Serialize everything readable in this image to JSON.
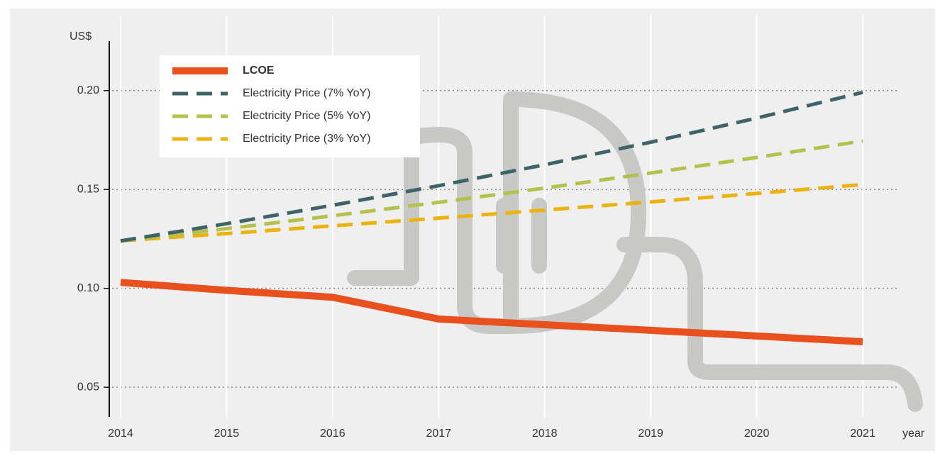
{
  "chart_data": {
    "type": "line",
    "y_label": "US$",
    "x_label": "year",
    "x": [
      2014,
      2015,
      2016,
      2017,
      2018,
      2019,
      2020,
      2021
    ],
    "xlim": [
      2013.9,
      2021.1
    ],
    "xticks": [
      2014,
      2015,
      2016,
      2017,
      2018,
      2019,
      2020,
      2021
    ],
    "ylim": [
      0.035,
      0.225
    ],
    "yticks": [
      {
        "value": 0.05,
        "label": "0.05"
      },
      {
        "value": 0.1,
        "label": "0.10"
      },
      {
        "value": 0.15,
        "label": "0.15"
      },
      {
        "value": 0.2,
        "label": "0.20"
      }
    ],
    "grid": true,
    "legend": "top-left",
    "series": [
      {
        "name": "LCOE",
        "color": "#e8501e",
        "dashed": false,
        "values": [
          0.103,
          0.099,
          0.0955,
          0.0845,
          0.0816,
          0.0788,
          0.0759,
          0.073
        ]
      },
      {
        "name": "Electricity Price (7% YoY)",
        "color": "#3e6468",
        "dashed": true,
        "values": [
          0.124,
          0.1327,
          0.142,
          0.1519,
          0.1625,
          0.1739,
          0.1861,
          0.1991
        ]
      },
      {
        "name": "Electricity Price (5% YoY)",
        "color": "#b5c14a",
        "dashed": true,
        "values": [
          0.124,
          0.1302,
          0.1367,
          0.1435,
          0.1507,
          0.1583,
          0.1662,
          0.1745
        ]
      },
      {
        "name": "Electricity Price (3% YoY)",
        "color": "#ecb20e",
        "dashed": true,
        "values": [
          0.124,
          0.1277,
          0.1316,
          0.1355,
          0.1396,
          0.1437,
          0.148,
          0.1525
        ]
      }
    ]
  }
}
